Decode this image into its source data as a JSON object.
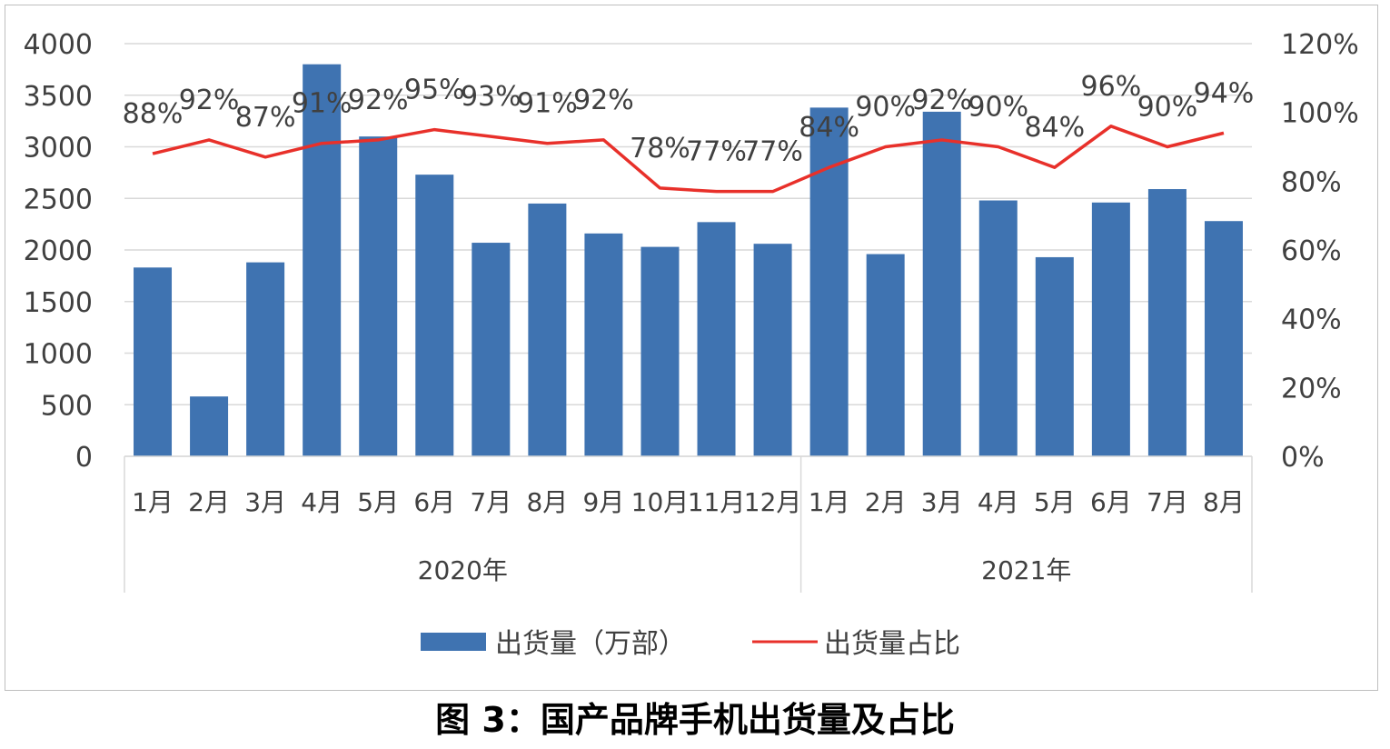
{
  "caption": "图 3：国产品牌手机出货量及占比",
  "chart_data": {
    "type": "bar",
    "title": "",
    "groups": [
      {
        "label": "2020年",
        "months": [
          "1月",
          "2月",
          "3月",
          "4月",
          "5月",
          "6月",
          "7月",
          "8月",
          "9月",
          "10月",
          "11月",
          "12月"
        ]
      },
      {
        "label": "2021年",
        "months": [
          "1月",
          "2月",
          "3月",
          "4月",
          "5月",
          "6月",
          "7月",
          "8月"
        ]
      }
    ],
    "categories": [
      "1月",
      "2月",
      "3月",
      "4月",
      "5月",
      "6月",
      "7月",
      "8月",
      "9月",
      "10月",
      "11月",
      "12月",
      "1月",
      "2月",
      "3月",
      "4月",
      "5月",
      "6月",
      "7月",
      "8月"
    ],
    "series": [
      {
        "name": "出货量（万部）",
        "type": "bar",
        "axis": "left",
        "color": "#3f73b1",
        "values": [
          1830,
          580,
          1880,
          3800,
          3100,
          2730,
          2070,
          2450,
          2160,
          2030,
          2270,
          2060,
          3380,
          1960,
          3340,
          2480,
          1930,
          2460,
          2590,
          2280
        ]
      },
      {
        "name": "出货量占比",
        "type": "line",
        "axis": "right",
        "color": "#e8302a",
        "values": [
          88,
          92,
          87,
          91,
          92,
          95,
          93,
          91,
          92,
          78,
          77,
          77,
          84,
          90,
          92,
          90,
          84,
          96,
          90,
          94
        ],
        "labels": [
          "88%",
          "92%",
          "87%",
          "91%",
          "92%",
          "95%",
          "93%",
          "91%",
          "92%",
          "78%",
          "77%",
          "77%",
          "84%",
          "90%",
          "92%",
          "90%",
          "84%",
          "96%",
          "90%",
          "94%"
        ]
      }
    ],
    "y_left": {
      "min": 0,
      "max": 4000,
      "ticks": [
        "0",
        "500",
        "1000",
        "1500",
        "2000",
        "2500",
        "3000",
        "3500",
        "4000"
      ]
    },
    "y_right": {
      "min": 0,
      "max": 120,
      "ticks": [
        "0%",
        "20%",
        "40%",
        "60%",
        "80%",
        "100%",
        "120%"
      ]
    },
    "grid": true,
    "legend_position": "bottom"
  }
}
